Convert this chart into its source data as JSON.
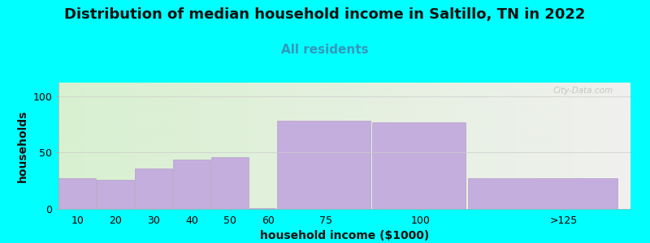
{
  "title": "Distribution of median household income in Saltillo, TN in 2022",
  "subtitle": "All residents",
  "xlabel": "household income ($1000)",
  "ylabel": "households",
  "background_color": "#00FFFF",
  "bar_color": "#c4aedd",
  "bar_edge_color": "#b89ecc",
  "values": [
    27,
    26,
    36,
    44,
    46,
    1,
    78,
    77,
    27
  ],
  "bar_left_edges": [
    5,
    15,
    25,
    35,
    45,
    55,
    62,
    87,
    112
  ],
  "bar_widths": [
    10,
    10,
    10,
    10,
    10,
    7,
    25,
    25,
    40
  ],
  "xtick_positions": [
    10,
    20,
    30,
    40,
    50,
    60,
    75,
    100,
    137.5
  ],
  "xtick_labels": [
    "10",
    "20",
    "30",
    "40",
    "50",
    "60",
    "75",
    "100",
    ">125"
  ],
  "xlim": [
    5,
    155
  ],
  "ylim": [
    0,
    112
  ],
  "yticks": [
    0,
    50,
    100
  ],
  "title_fontsize": 13,
  "subtitle_fontsize": 11,
  "subtitle_color": "#3399bb",
  "axis_label_fontsize": 10,
  "tick_fontsize": 9,
  "watermark": "City-Data.com",
  "bg_gradient_left": "#d8f0d0",
  "bg_gradient_right": "#f0f0ee"
}
